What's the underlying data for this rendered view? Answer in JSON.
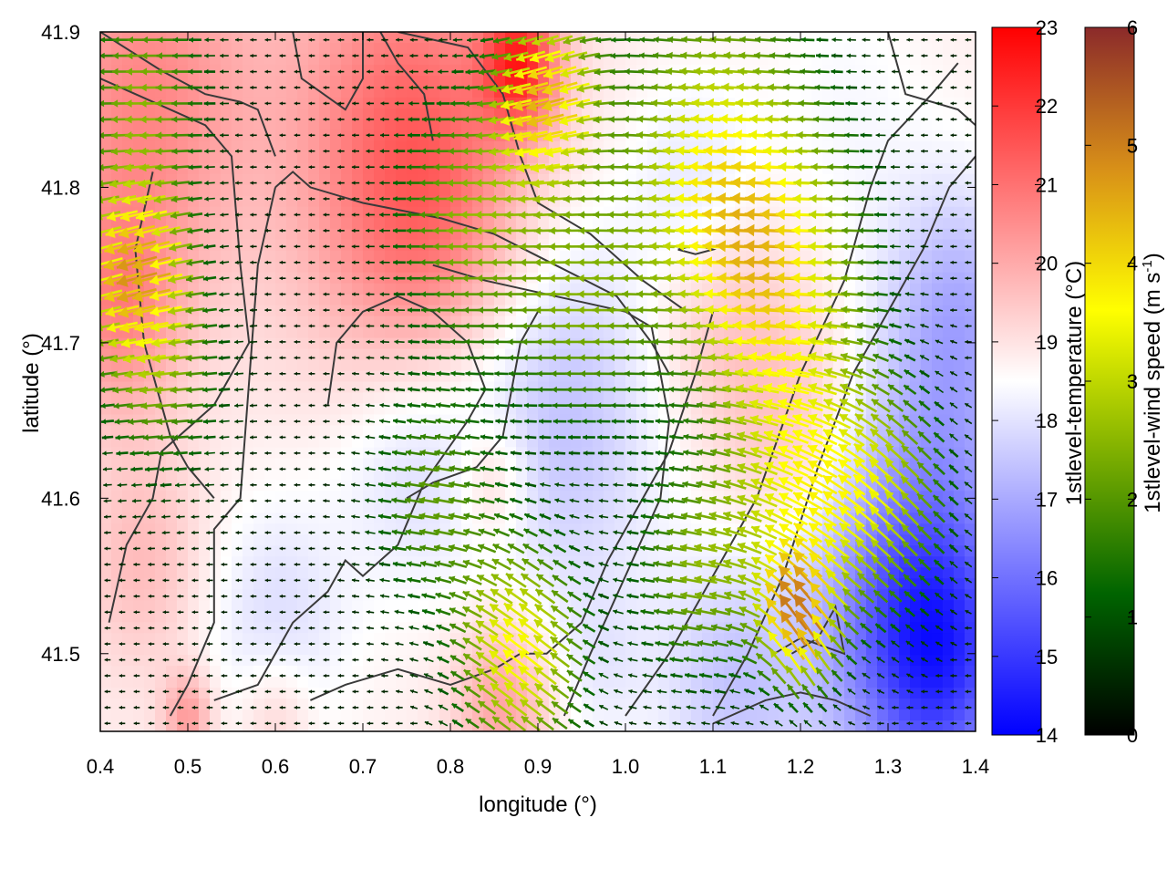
{
  "chart_data": {
    "type": "heatmap",
    "title": "",
    "xlabel": "longitude (°)",
    "ylabel": "latitude (°)",
    "xlim": [
      0.4,
      1.4
    ],
    "ylim": [
      41.45,
      41.9
    ],
    "xticks": [
      "0.4",
      "0.5",
      "0.6",
      "0.7",
      "0.8",
      "0.9",
      "1.0",
      "1.1",
      "1.2",
      "1.3",
      "1.4"
    ],
    "xtick_values": [
      0.4,
      0.5,
      0.6,
      0.7,
      0.8,
      0.9,
      1.0,
      1.1,
      1.2,
      1.3,
      1.4
    ],
    "yticks": [
      "41.5",
      "41.6",
      "41.7",
      "41.8",
      "41.9"
    ],
    "ytick_values": [
      41.5,
      41.6,
      41.7,
      41.8,
      41.9
    ],
    "temperature_colorbar": {
      "label": "1stlevel-temperature (°C)",
      "range": [
        14,
        23
      ],
      "ticks": [
        "14",
        "15",
        "16",
        "17",
        "18",
        "19",
        "20",
        "21",
        "22",
        "23"
      ],
      "colors": [
        "#0000ff",
        "#ffffff",
        "#ff0000"
      ]
    },
    "wind_colorbar": {
      "label_main": "1stlevel-wind speed (m s",
      "label_sup": "-1",
      "label_end": ")",
      "range": [
        0,
        6
      ],
      "ticks": [
        "0",
        "1",
        "2",
        "3",
        "4",
        "5",
        "6"
      ],
      "colors": [
        "#000000",
        "#006400",
        "#7fb000",
        "#ffff00",
        "#d89018",
        "#8b2a2a"
      ]
    },
    "temperature_field": {
      "background": 18.8,
      "features": [
        {
          "lon": 0.45,
          "lat": 41.86,
          "sigma": 0.09,
          "amp": 1.8
        },
        {
          "lon": 0.75,
          "lat": 41.84,
          "sigma": 0.1,
          "amp": 2.0
        },
        {
          "lon": 0.88,
          "lat": 41.88,
          "sigma": 0.03,
          "amp": 3.0
        },
        {
          "lon": 0.42,
          "lat": 41.72,
          "sigma": 0.05,
          "amp": 1.5
        },
        {
          "lon": 0.78,
          "lat": 41.76,
          "sigma": 0.08,
          "amp": 1.1
        },
        {
          "lon": 1.1,
          "lat": 41.72,
          "sigma": 0.06,
          "amp": 0.8
        },
        {
          "lon": 1.2,
          "lat": 41.64,
          "sigma": 0.06,
          "amp": 1.0
        },
        {
          "lon": 0.86,
          "lat": 41.47,
          "sigma": 0.04,
          "amp": 1.4
        },
        {
          "lon": 0.5,
          "lat": 41.46,
          "sigma": 0.02,
          "amp": 1.5
        },
        {
          "lon": 0.45,
          "lat": 41.56,
          "sigma": 0.05,
          "amp": 0.9
        },
        {
          "lon": 0.6,
          "lat": 41.46,
          "sigma": 0.03,
          "amp": 0.8
        },
        {
          "lon": 0.85,
          "lat": 41.61,
          "sigma": 0.03,
          "amp": 1.0
        },
        {
          "lon": 0.92,
          "lat": 41.66,
          "sigma": 0.09,
          "amp": -1.5
        },
        {
          "lon": 0.75,
          "lat": 41.63,
          "sigma": 0.06,
          "amp": -0.9
        },
        {
          "lon": 0.6,
          "lat": 41.52,
          "sigma": 0.06,
          "amp": -0.9
        },
        {
          "lon": 1.08,
          "lat": 41.8,
          "sigma": 0.05,
          "amp": -0.8
        },
        {
          "lon": 1.33,
          "lat": 41.54,
          "sigma": 0.09,
          "amp": -3.0
        },
        {
          "lon": 1.36,
          "lat": 41.49,
          "sigma": 0.06,
          "amp": -2.0
        },
        {
          "lon": 1.38,
          "lat": 41.72,
          "sigma": 0.06,
          "amp": -1.6
        },
        {
          "lon": 1.12,
          "lat": 41.48,
          "sigma": 0.06,
          "amp": -1.2
        },
        {
          "lon": 0.97,
          "lat": 41.49,
          "sigma": 0.04,
          "amp": -0.5
        },
        {
          "lon": 1.25,
          "lat": 41.85,
          "sigma": 0.07,
          "amp": -0.4
        }
      ]
    },
    "wind_field": {
      "direction_deg": 180,
      "background_speed": 0.4,
      "features": [
        {
          "lon": 0.45,
          "lat": 41.86,
          "sigma": 0.05,
          "amp": 2.0,
          "dir": 180
        },
        {
          "lon": 0.44,
          "lat": 41.75,
          "sigma": 0.04,
          "amp": 3.6,
          "dir": 200
        },
        {
          "lon": 0.47,
          "lat": 41.68,
          "sigma": 0.05,
          "amp": 1.8,
          "dir": 185
        },
        {
          "lon": 0.91,
          "lat": 41.86,
          "sigma": 0.04,
          "amp": 3.5,
          "dir": 200
        },
        {
          "lon": 0.82,
          "lat": 41.78,
          "sigma": 0.06,
          "amp": 2.0,
          "dir": 180
        },
        {
          "lon": 1.1,
          "lat": 41.82,
          "sigma": 0.08,
          "amp": 2.6,
          "dir": 175
        },
        {
          "lon": 1.18,
          "lat": 41.74,
          "sigma": 0.07,
          "amp": 2.8,
          "dir": 180
        },
        {
          "lon": 0.95,
          "lat": 41.72,
          "sigma": 0.06,
          "amp": 1.7,
          "dir": 180
        },
        {
          "lon": 1.2,
          "lat": 41.6,
          "sigma": 0.06,
          "amp": 2.4,
          "dir": 150
        },
        {
          "lon": 1.2,
          "lat": 41.52,
          "sigma": 0.03,
          "amp": 3.5,
          "dir": 110
        },
        {
          "lon": 1.3,
          "lat": 41.6,
          "sigma": 0.05,
          "amp": 2.2,
          "dir": 130
        },
        {
          "lon": 0.88,
          "lat": 41.5,
          "sigma": 0.05,
          "amp": 3.2,
          "dir": 140
        },
        {
          "lon": 0.78,
          "lat": 41.6,
          "sigma": 0.05,
          "amp": 1.6,
          "dir": 170
        },
        {
          "lon": 1.08,
          "lat": 41.55,
          "sigma": 0.05,
          "amp": 1.8,
          "dir": 170
        }
      ]
    },
    "isolines": [
      [
        [
          0.4,
          41.9
        ],
        [
          0.47,
          41.875
        ],
        [
          0.52,
          41.86
        ],
        [
          0.56,
          41.855
        ],
        [
          0.58,
          41.85
        ],
        [
          0.6,
          41.82
        ]
      ],
      [
        [
          0.4,
          41.87
        ],
        [
          0.48,
          41.85
        ],
        [
          0.52,
          41.84
        ],
        [
          0.55,
          41.82
        ],
        [
          0.56,
          41.75
        ],
        [
          0.57,
          41.7
        ],
        [
          0.55,
          41.68
        ],
        [
          0.53,
          41.66
        ]
      ],
      [
        [
          0.53,
          41.66
        ],
        [
          0.47,
          41.63
        ],
        [
          0.46,
          41.6
        ],
        [
          0.43,
          41.57
        ],
        [
          0.41,
          41.52
        ]
      ],
      [
        [
          0.46,
          41.81
        ],
        [
          0.44,
          41.76
        ],
        [
          0.45,
          41.7
        ],
        [
          0.48,
          41.64
        ],
        [
          0.5,
          41.62
        ],
        [
          0.53,
          41.6
        ]
      ],
      [
        [
          0.62,
          41.9
        ],
        [
          0.63,
          41.87
        ],
        [
          0.68,
          41.85
        ],
        [
          0.7,
          41.87
        ],
        [
          0.7,
          41.9
        ]
      ],
      [
        [
          0.6,
          41.8
        ],
        [
          0.62,
          41.81
        ],
        [
          0.64,
          41.8
        ],
        [
          0.7,
          41.79
        ],
        [
          0.79,
          41.78
        ],
        [
          0.85,
          41.77
        ],
        [
          0.92,
          41.75
        ],
        [
          0.99,
          41.73
        ],
        [
          1.03,
          41.7
        ],
        [
          1.05,
          41.68
        ]
      ],
      [
        [
          0.6,
          41.8
        ],
        [
          0.58,
          41.75
        ],
        [
          0.56,
          41.6
        ],
        [
          0.53,
          41.58
        ],
        [
          0.53,
          41.52
        ],
        [
          0.5,
          41.48
        ],
        [
          0.48,
          41.46
        ]
      ],
      [
        [
          0.74,
          41.9
        ],
        [
          0.82,
          41.89
        ],
        [
          0.86,
          41.86
        ],
        [
          0.88,
          41.82
        ],
        [
          0.9,
          41.79
        ],
        [
          0.96,
          41.77
        ],
        [
          1.02,
          41.74
        ],
        [
          1.07,
          41.72
        ]
      ],
      [
        [
          0.78,
          41.75
        ],
        [
          0.84,
          41.74
        ],
        [
          0.92,
          41.73
        ],
        [
          1.0,
          41.72
        ],
        [
          1.03,
          41.71
        ],
        [
          1.05,
          41.65
        ],
        [
          1.04,
          41.6
        ],
        [
          1.0,
          41.55
        ],
        [
          0.96,
          41.5
        ],
        [
          0.93,
          41.46
        ]
      ],
      [
        [
          0.53,
          41.47
        ],
        [
          0.58,
          41.48
        ],
        [
          0.62,
          41.52
        ],
        [
          0.66,
          41.54
        ],
        [
          0.68,
          41.56
        ],
        [
          0.7,
          41.55
        ],
        [
          0.74,
          41.57
        ],
        [
          0.77,
          41.61
        ],
        [
          0.82,
          41.65
        ],
        [
          0.84,
          41.67
        ],
        [
          0.82,
          41.7
        ],
        [
          0.78,
          41.72
        ],
        [
          0.74,
          41.73
        ],
        [
          0.7,
          41.72
        ],
        [
          0.67,
          41.7
        ],
        [
          0.66,
          41.66
        ]
      ],
      [
        [
          0.75,
          41.6
        ],
        [
          0.78,
          41.61
        ],
        [
          0.83,
          41.62
        ],
        [
          0.86,
          41.64
        ],
        [
          0.88,
          41.7
        ],
        [
          0.9,
          41.72
        ]
      ],
      [
        [
          0.64,
          41.47
        ],
        [
          0.68,
          41.48
        ],
        [
          0.74,
          41.49
        ],
        [
          0.8,
          41.48
        ],
        [
          0.85,
          41.49
        ],
        [
          0.88,
          41.5
        ],
        [
          0.91,
          41.5
        ],
        [
          0.95,
          41.52
        ],
        [
          0.98,
          41.56
        ],
        [
          1.02,
          41.6
        ],
        [
          1.05,
          41.63
        ],
        [
          1.08,
          41.68
        ],
        [
          1.1,
          41.72
        ]
      ],
      [
        [
          1.0,
          41.46
        ],
        [
          1.05,
          41.5
        ],
        [
          1.1,
          41.55
        ],
        [
          1.15,
          41.6
        ],
        [
          1.2,
          41.68
        ],
        [
          1.25,
          41.74
        ],
        [
          1.28,
          41.8
        ],
        [
          1.3,
          41.83
        ],
        [
          1.35,
          41.86
        ],
        [
          1.38,
          41.88
        ]
      ],
      [
        [
          1.1,
          41.46
        ],
        [
          1.14,
          41.5
        ],
        [
          1.18,
          41.55
        ],
        [
          1.22,
          41.62
        ],
        [
          1.26,
          41.68
        ],
        [
          1.3,
          41.72
        ],
        [
          1.34,
          41.76
        ],
        [
          1.37,
          41.8
        ],
        [
          1.4,
          41.82
        ]
      ],
      [
        [
          1.06,
          41.76
        ],
        [
          1.08,
          41.757
        ],
        [
          1.1,
          41.76
        ],
        [
          1.08,
          41.763
        ],
        [
          1.06,
          41.76
        ]
      ],
      [
        [
          1.17,
          41.5
        ],
        [
          1.2,
          41.51
        ],
        [
          1.25,
          41.5
        ],
        [
          1.24,
          41.53
        ],
        [
          1.22,
          41.51
        ],
        [
          1.19,
          41.5
        ]
      ],
      [
        [
          1.1,
          41.455
        ],
        [
          1.16,
          41.47
        ],
        [
          1.2,
          41.475
        ],
        [
          1.24,
          41.47
        ],
        [
          1.28,
          41.46
        ]
      ],
      [
        [
          1.3,
          41.9
        ],
        [
          1.32,
          41.86
        ],
        [
          1.38,
          41.85
        ],
        [
          1.4,
          41.84
        ]
      ],
      [
        [
          0.72,
          41.9
        ],
        [
          0.74,
          41.88
        ],
        [
          0.77,
          41.86
        ],
        [
          0.78,
          41.83
        ]
      ]
    ]
  }
}
